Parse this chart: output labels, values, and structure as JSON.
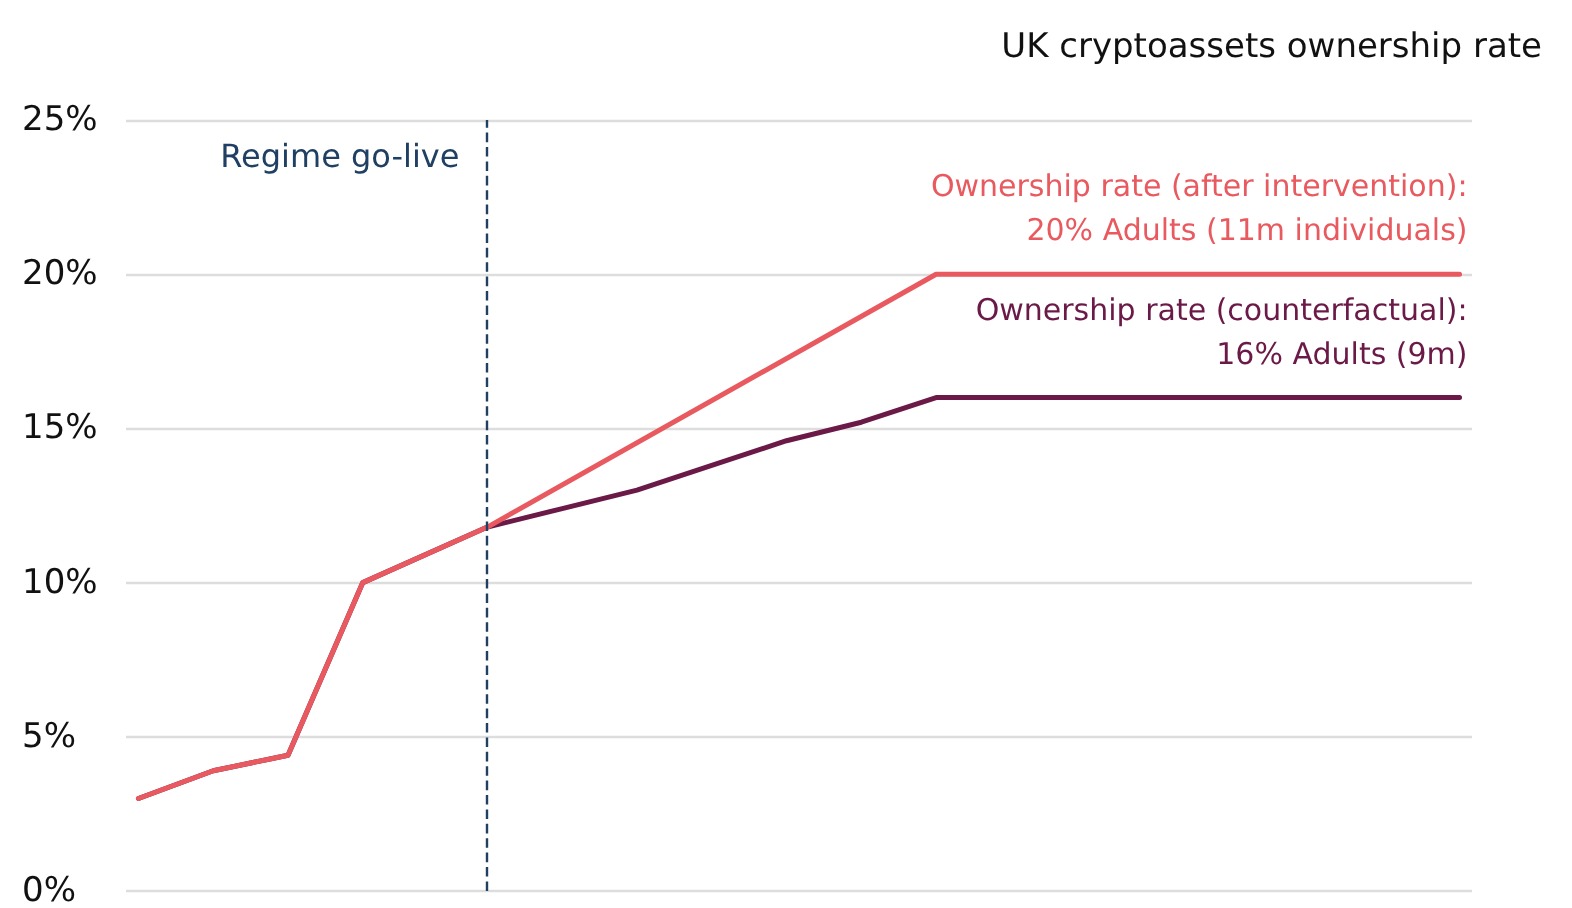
{
  "chart_data": {
    "type": "line",
    "title": "UK cryptoassets ownership rate",
    "annotations": [
      "Regime go-live"
    ],
    "categories": [
      null,
      null,
      null,
      null,
      null,
      null,
      null,
      null,
      null,
      null,
      null,
      null,
      null,
      null,
      null,
      null,
      null,
      null,
      null,
      null,
      null,
      null,
      null,
      null,
      null,
      null,
      null,
      null,
      null,
      null,
      null,
      null,
      null,
      null,
      null,
      null,
      null,
      null,
      null,
      null,
      null,
      null,
      null,
      null,
      null,
      null,
      null,
      null,
      null,
      null,
      null,
      null,
      null,
      null
    ],
    "ylim": [
      0,
      25
    ],
    "yticks": [
      {
        "value": 0,
        "label": "0%"
      },
      {
        "value": 5,
        "label": "5%"
      },
      {
        "value": 10,
        "label": "10%"
      },
      {
        "value": 15,
        "label": "15%"
      },
      {
        "value": 20,
        "label": "20%"
      },
      {
        "value": 25,
        "label": "25%"
      }
    ],
    "tick_labels": "y",
    "grid": "y",
    "legend": false,
    "marker": "none",
    "line_style": "solid",
    "series": [
      {
        "name": "Ownership rate (counterfactual): 16% Adults (9m)",
        "color": "#6b1a48",
        "values": [
          3.0,
          null,
          null,
          3.9,
          null,
          null,
          4.4,
          null,
          null,
          10.0,
          null,
          null,
          null,
          null,
          11.8,
          null,
          null,
          12.4,
          null,
          null,
          13.0,
          null,
          null,
          13.8,
          null,
          null,
          14.6,
          null,
          null,
          15.2,
          null,
          null,
          16.0,
          null,
          null,
          null,
          null,
          null,
          null,
          null,
          null,
          null,
          null,
          null,
          null,
          null,
          null,
          null,
          null,
          null,
          null,
          null,
          null,
          16.0
        ]
      },
      {
        "name": "Ownership rate (after intervention): 20% Adults (11m individuals)",
        "color": "#e85a5f",
        "values": [
          3.0,
          null,
          null,
          3.9,
          null,
          null,
          4.4,
          null,
          null,
          10.0,
          null,
          null,
          null,
          null,
          11.8,
          null,
          null,
          null,
          null,
          null,
          null,
          null,
          null,
          null,
          null,
          null,
          null,
          null,
          null,
          null,
          null,
          null,
          20.0,
          null,
          null,
          null,
          null,
          null,
          null,
          null,
          null,
          null,
          null,
          null,
          null,
          null,
          null,
          null,
          null,
          null,
          null,
          null,
          null,
          20.0
        ]
      }
    ]
  }
}
